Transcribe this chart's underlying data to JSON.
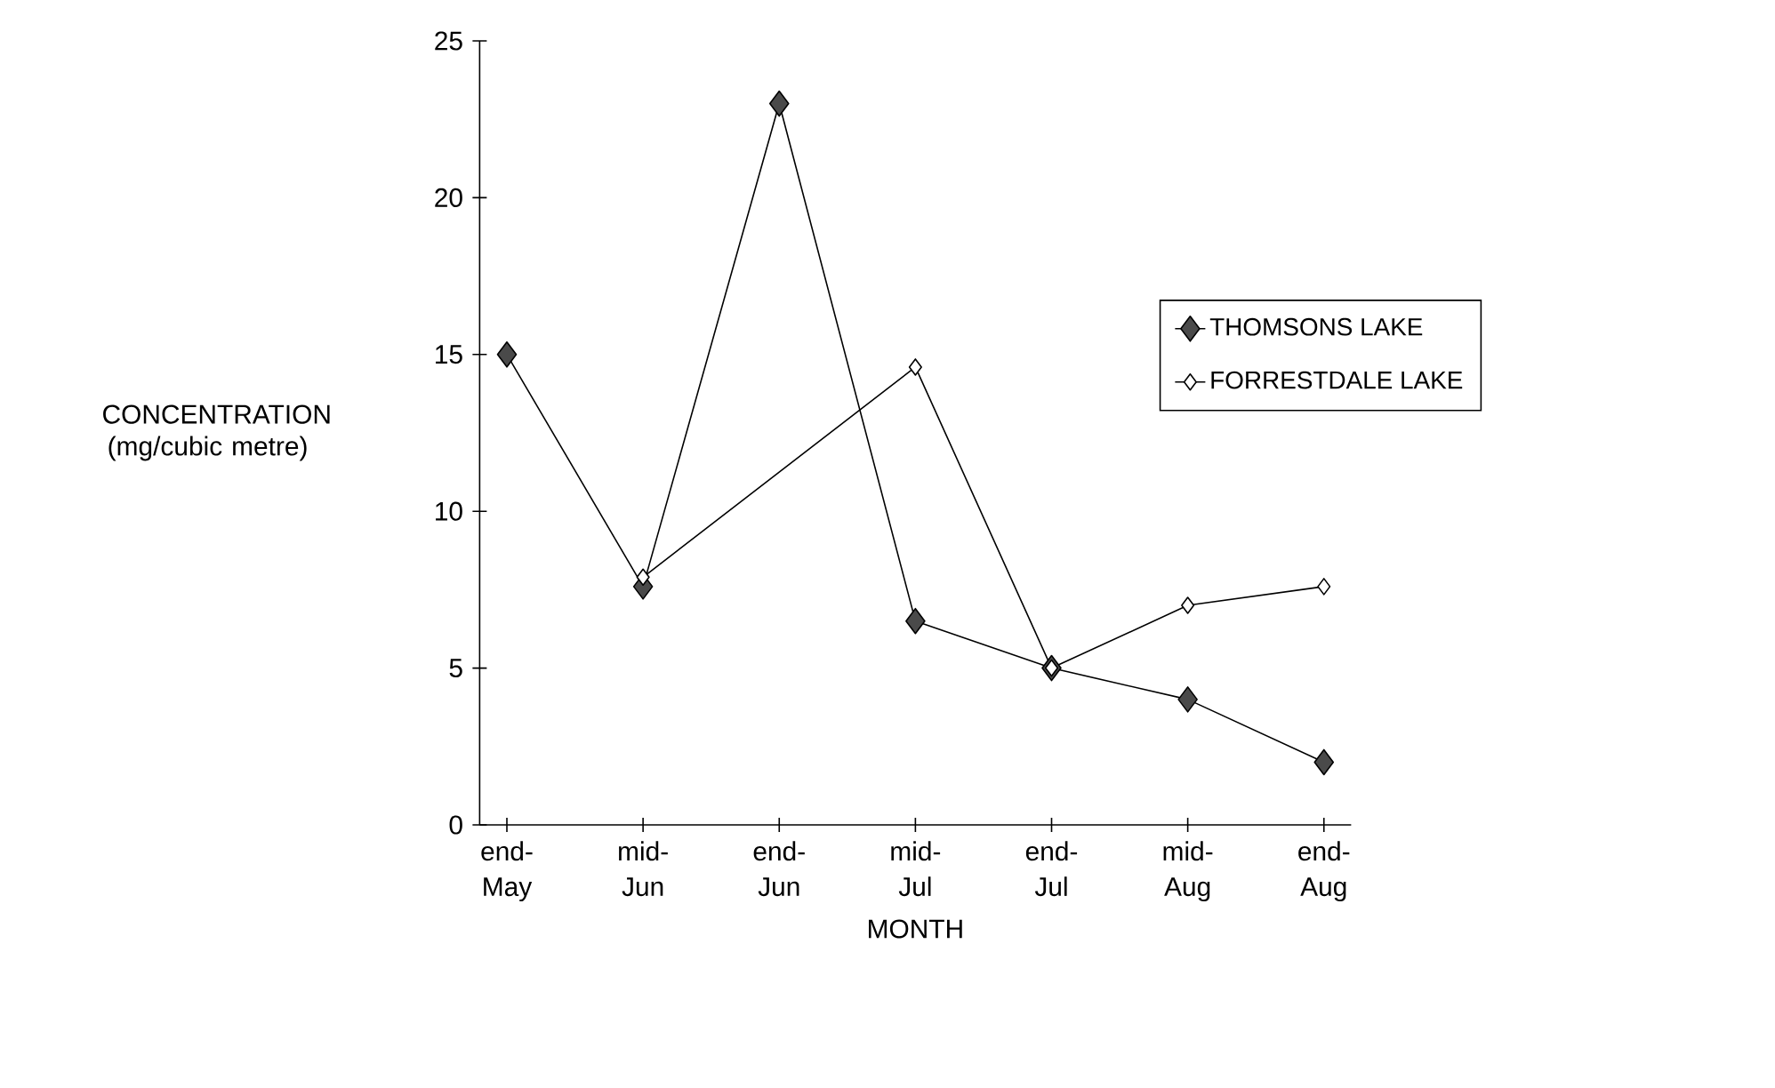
{
  "chart_data": {
    "type": "line",
    "xlabel": "MONTH",
    "ylabel": "CONCENTRATION (mg/cubic metre)",
    "categories": [
      "end- May",
      "mid- Jun",
      "end- Jun",
      "mid- Jul",
      "end- Jul",
      "mid- Aug",
      "end- Aug"
    ],
    "series": [
      {
        "name": "THOMSONS LAKE",
        "color": "#4a4a4a",
        "values": [
          15,
          7.6,
          23,
          6.5,
          5,
          4,
          2
        ]
      },
      {
        "name": "FORRESTDALE LAKE",
        "color": "#ffffff",
        "values": [
          null,
          7.9,
          null,
          14.6,
          5,
          7,
          7.6
        ]
      }
    ],
    "ylim": [
      0,
      25
    ],
    "yticks": [
      0,
      5,
      10,
      15,
      20,
      25
    ],
    "grid": false,
    "legend": "right",
    "marker": "diamond",
    "line_style": "solid"
  }
}
